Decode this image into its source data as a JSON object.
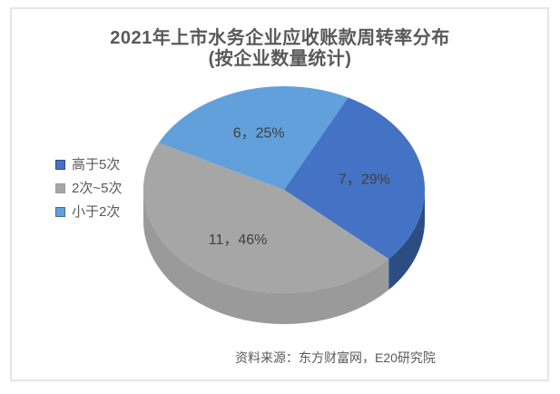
{
  "page": {
    "background": "#ffffff",
    "card_border_color": "#e4e4e4"
  },
  "chart_data": {
    "type": "pie",
    "style": "3d",
    "title": "2021年上市水务企业应收账款周转率分布",
    "subtitle": "(按企业数量统计)",
    "title_color": "#595959",
    "data_label_color": "#404040",
    "legend_position": "left",
    "start_angle_deg": 27,
    "slices": [
      {
        "name": "高于5次",
        "value": 7,
        "percent": "29%",
        "data_label": "7，29%",
        "color": "#4472C4",
        "side_color": "#2B4D84"
      },
      {
        "name": "2次~5次",
        "value": 11,
        "percent": "46%",
        "data_label": "11，46%",
        "color": "#A6A6A6",
        "side_color": "#9A9A9A"
      },
      {
        "name": "小于2次",
        "value": 6,
        "percent": "25%",
        "data_label": "6，25%",
        "color": "#61A0DA",
        "side_color": "#3D6E9E"
      }
    ],
    "source_note": "资料来源：东方财富网，E20研究院"
  }
}
